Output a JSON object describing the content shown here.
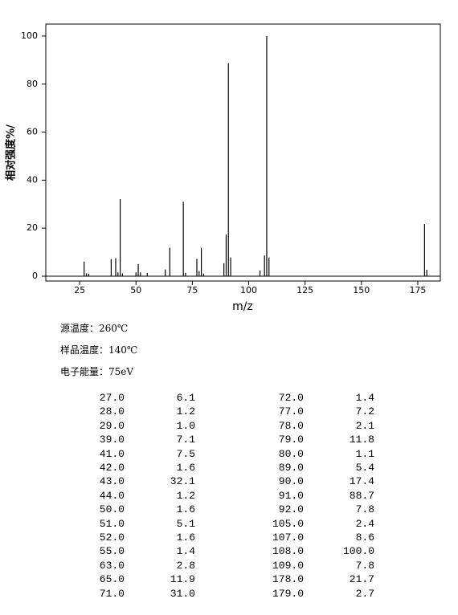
{
  "chart_data": {
    "type": "bar",
    "x_label": "m/z",
    "y_label": "相对强度%/",
    "x": [
      27,
      28,
      29,
      39,
      41,
      42,
      43,
      44,
      50,
      51,
      52,
      55,
      63,
      65,
      71,
      72,
      77,
      78,
      79,
      80,
      89,
      90,
      91,
      92,
      105,
      107,
      108,
      109,
      178,
      179
    ],
    "values": [
      6.1,
      1.2,
      1.0,
      7.1,
      7.5,
      1.6,
      32.1,
      1.2,
      1.6,
      5.1,
      1.6,
      1.4,
      2.8,
      11.9,
      31.0,
      1.4,
      7.2,
      2.1,
      11.8,
      1.1,
      5.4,
      17.4,
      88.7,
      7.8,
      2.4,
      8.6,
      100.0,
      7.8,
      21.7,
      2.7
    ],
    "color": "#000000",
    "xlim": [
      10,
      185
    ],
    "xticks": [
      25,
      50,
      75,
      100,
      125,
      150,
      175
    ],
    "ylim": [
      -2,
      105
    ],
    "yticks": [
      0,
      20,
      40,
      60,
      80,
      100
    ]
  },
  "info": [
    "源温度：260℃",
    "样品温度：140℃",
    "电子能量：75eV"
  ],
  "table": {
    "rows": [
      [
        "27.0",
        "6.1"
      ],
      [
        "28.0",
        "1.2"
      ],
      [
        "29.0",
        "1.0"
      ],
      [
        "39.0",
        "7.1"
      ],
      [
        "41.0",
        "7.5"
      ],
      [
        "42.0",
        "1.6"
      ],
      [
        "43.0",
        "32.1"
      ],
      [
        "44.0",
        "1.2"
      ],
      [
        "50.0",
        "1.6"
      ],
      [
        "51.0",
        "5.1"
      ],
      [
        "52.0",
        "1.6"
      ],
      [
        "55.0",
        "1.4"
      ],
      [
        "63.0",
        "2.8"
      ],
      [
        "65.0",
        "11.9"
      ],
      [
        "71.0",
        "31.0"
      ],
      [
        "72.0",
        "1.4"
      ],
      [
        "77.0",
        "7.2"
      ],
      [
        "78.0",
        "2.1"
      ],
      [
        "79.0",
        "11.8"
      ],
      [
        "80.0",
        "1.1"
      ],
      [
        "89.0",
        "5.4"
      ],
      [
        "90.0",
        "17.4"
      ],
      [
        "91.0",
        "88.7"
      ],
      [
        "92.0",
        "7.8"
      ],
      [
        "105.0",
        "2.4"
      ],
      [
        "107.0",
        "8.6"
      ],
      [
        "108.0",
        "100.0"
      ],
      [
        "109.0",
        "7.8"
      ],
      [
        "178.0",
        "21.7"
      ],
      [
        "179.0",
        "2.7"
      ]
    ]
  }
}
